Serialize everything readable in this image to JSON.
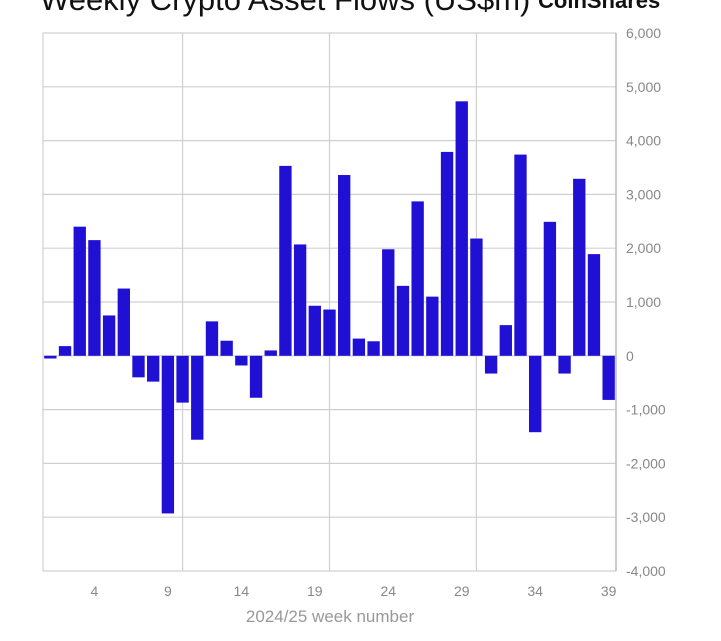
{
  "chart_data": {
    "type": "bar",
    "title": "Weekly Crypto Asset Flows (US$m)",
    "logo": "CoinShares",
    "xlabel": "2024/25 week number",
    "ylabel": "",
    "ylim": [
      -4000,
      6000
    ],
    "y_ticks": [
      "6,000",
      "5,000",
      "4,000",
      "3,000",
      "2,000",
      "1,000",
      "0",
      "-1,000",
      "-2,000",
      "-3,000",
      "-4,000"
    ],
    "x_ticks": [
      "4",
      "9",
      "14",
      "19",
      "24",
      "29",
      "34",
      "39"
    ],
    "y_axis_side": "right",
    "grid": true,
    "bar_color": "#1f10d4",
    "categories": [
      1,
      2,
      3,
      4,
      5,
      6,
      7,
      8,
      9,
      10,
      11,
      12,
      13,
      14,
      15,
      16,
      17,
      18,
      19,
      20,
      21,
      22,
      23,
      24,
      25,
      26,
      27,
      28,
      29,
      30,
      31,
      32,
      33,
      34,
      35,
      36,
      37,
      38,
      39
    ],
    "values": [
      -50,
      180,
      2400,
      2150,
      750,
      1250,
      -400,
      -480,
      -2930,
      -870,
      -1560,
      640,
      280,
      -180,
      -780,
      100,
      3530,
      2070,
      930,
      860,
      3360,
      320,
      270,
      1980,
      1300,
      2870,
      1100,
      3790,
      4730,
      2180,
      -330,
      570,
      3740,
      -1420,
      2490,
      -330,
      3290,
      1890,
      -820
    ]
  }
}
